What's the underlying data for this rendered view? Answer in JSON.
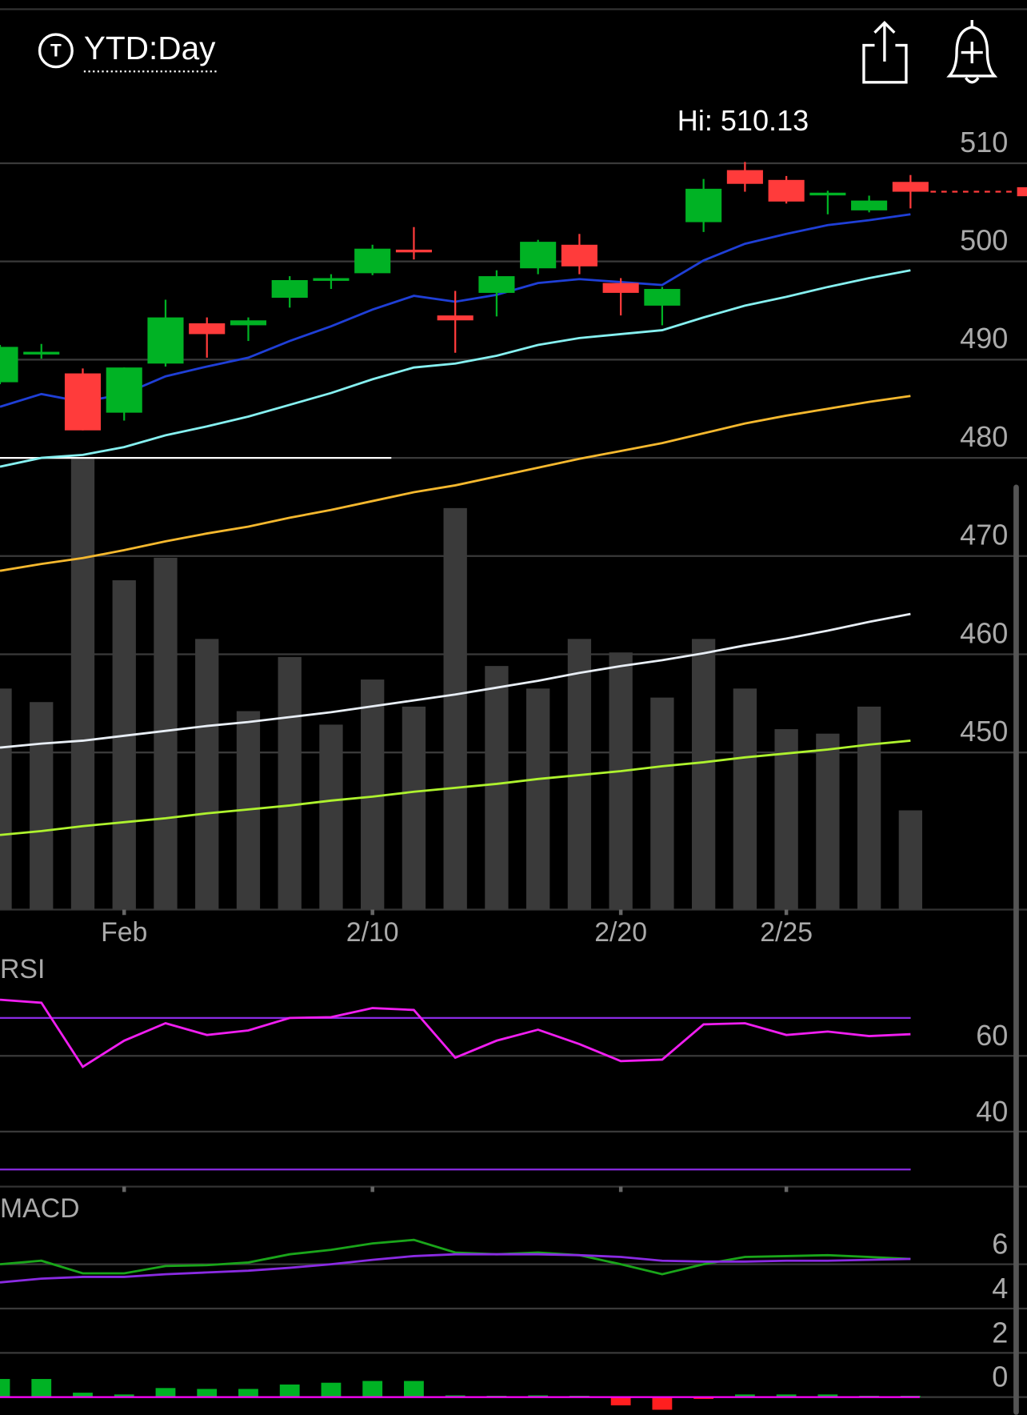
{
  "header": {
    "icon_text": "T",
    "title": "YTD:Day"
  },
  "chart_data": [
    {
      "type": "candlestick",
      "categories": [
        null,
        null,
        null,
        "Feb",
        null,
        null,
        null,
        null,
        null,
        "2/10",
        null,
        null,
        null,
        null,
        null,
        "2/20",
        null,
        null,
        null,
        "2/25",
        null,
        null,
        null
      ],
      "open": [
        487.7,
        490.6,
        488.6,
        484.6,
        489.6,
        493.7,
        493.5,
        496.3,
        498.1,
        498.8,
        501.2,
        494.5,
        496.8,
        499.3,
        501.7,
        497.8,
        495.5,
        504.0,
        509.3,
        508.3,
        506.8,
        505.2,
        508.1
      ],
      "high": [
        491.5,
        491.6,
        489.1,
        489.2,
        496.1,
        494.3,
        494.3,
        498.5,
        498.7,
        501.7,
        503.5,
        497.0,
        499.1,
        502.2,
        502.8,
        498.3,
        497.4,
        508.4,
        510.13,
        508.7,
        507.2,
        506.7,
        508.8
      ],
      "low": [
        487.5,
        490.1,
        482.8,
        483.8,
        489.3,
        490.2,
        491.9,
        495.3,
        497.2,
        498.6,
        500.2,
        490.7,
        494.4,
        498.7,
        498.7,
        494.5,
        493.5,
        503.0,
        507.1,
        505.9,
        504.8,
        505.0,
        505.4
      ],
      "close": [
        491.3,
        490.8,
        482.8,
        489.2,
        494.3,
        492.6,
        494.0,
        498.1,
        498.3,
        501.3,
        501.0,
        494.0,
        498.5,
        502.0,
        499.5,
        496.8,
        497.2,
        507.4,
        507.9,
        506.1,
        507.0,
        506.2,
        507.1
      ],
      "up_color": "#00b224",
      "down_color": "#ff3b3b",
      "ylim": [
        434,
        516.5
      ],
      "yticks": [
        450,
        460,
        470,
        480,
        490,
        500,
        510
      ],
      "grid": true,
      "annotations": [
        {
          "text": "Hi: 510.13",
          "value": 510.13
        }
      ],
      "overlays": [
        {
          "color": "#1f3fd6",
          "values": [
            485.2,
            486.5,
            485.7,
            486.5,
            488.3,
            489.3,
            490.2,
            491.9,
            493.4,
            495.1,
            496.5,
            495.9,
            496.6,
            497.8,
            498.2,
            497.9,
            497.6,
            500.1,
            501.8,
            502.8,
            503.7,
            504.2,
            504.8
          ]
        },
        {
          "color": "#86f0f0",
          "values": [
            479.1,
            480.0,
            480.3,
            481.1,
            482.3,
            483.2,
            484.2,
            485.4,
            486.6,
            488.0,
            489.2,
            489.6,
            490.4,
            491.5,
            492.2,
            492.6,
            493.0,
            494.3,
            495.5,
            496.4,
            497.4,
            498.3,
            499.1
          ]
        },
        {
          "color": "#f5b82e",
          "values": [
            468.5,
            469.2,
            469.8,
            470.6,
            471.5,
            472.3,
            473.0,
            473.9,
            474.7,
            475.6,
            476.5,
            477.2,
            478.1,
            479.0,
            479.9,
            480.7,
            481.5,
            482.5,
            483.5,
            484.3,
            485.0,
            485.7,
            486.3
          ]
        },
        {
          "color": "#e8eef5",
          "values": [
            450.5,
            450.9,
            451.2,
            451.7,
            452.2,
            452.7,
            453.1,
            453.6,
            454.1,
            454.7,
            455.3,
            455.9,
            456.6,
            457.3,
            458.1,
            458.8,
            459.4,
            460.1,
            460.9,
            461.6,
            462.4,
            463.3,
            464.1
          ]
        },
        {
          "color": "#aef22e",
          "values": [
            441.6,
            442.0,
            442.5,
            442.9,
            443.3,
            443.8,
            444.2,
            444.6,
            445.1,
            445.5,
            446.0,
            446.4,
            446.8,
            447.3,
            447.7,
            448.1,
            448.6,
            449.0,
            449.5,
            449.9,
            450.3,
            450.8,
            451.2
          ]
        }
      ],
      "reference_lines": [
        {
          "value": 480,
          "color": "#ffffff"
        }
      ],
      "volume": {
        "color": "#3a3a3a",
        "values": [
          49,
          46,
          100,
          73,
          78,
          60,
          44,
          56,
          41,
          51,
          45,
          89,
          54,
          49,
          60,
          57,
          47,
          60,
          49,
          40,
          39,
          45,
          22
        ]
      }
    },
    {
      "type": "line",
      "title": "RSI",
      "color": "#f01ef0",
      "values": [
        74.8,
        74.0,
        57.1,
        64.0,
        68.6,
        65.5,
        66.7,
        70.0,
        70.2,
        72.6,
        72.1,
        59.5,
        64.0,
        66.9,
        63.1,
        58.6,
        59.0,
        68.3,
        68.6,
        65.5,
        66.4,
        65.2,
        65.7
      ],
      "ylim": [
        25.5,
        86.2
      ],
      "yticks": [
        40,
        60
      ],
      "grid": true,
      "reference_lines": [
        {
          "value": 70,
          "color": "#8a2be2"
        },
        {
          "value": 30,
          "color": "#8a2be2"
        }
      ]
    },
    {
      "type": "macd",
      "title": "MACD",
      "series": [
        {
          "color": "#1aa51a",
          "values": [
            6.0,
            6.16,
            5.59,
            5.59,
            5.92,
            5.96,
            6.08,
            6.45,
            6.65,
            6.94,
            7.1,
            6.53,
            6.45,
            6.53,
            6.41,
            6.0,
            5.55,
            6.0,
            6.33,
            6.37,
            6.41,
            6.33,
            6.24
          ]
        },
        {
          "color": "#8a2be2",
          "values": [
            5.18,
            5.35,
            5.43,
            5.43,
            5.55,
            5.63,
            5.71,
            5.84,
            6.0,
            6.2,
            6.37,
            6.45,
            6.45,
            6.45,
            6.41,
            6.33,
            6.16,
            6.12,
            6.12,
            6.16,
            6.16,
            6.2,
            6.24
          ]
        }
      ],
      "histogram": {
        "up_color": "#00b224",
        "down_color": "#ff1f1f",
        "values": [
          0.82,
          0.82,
          0.2,
          0.12,
          0.41,
          0.37,
          0.37,
          0.57,
          0.65,
          0.73,
          0.73,
          0.08,
          0,
          0.08,
          0,
          -0.37,
          -0.57,
          -0.08,
          0.12,
          0.12,
          0.12,
          0,
          0
        ]
      },
      "zero_color": "#ff00ff",
      "ylim": [
        -0.8,
        9.1
      ],
      "yticks": [
        0,
        2,
        4,
        6
      ],
      "grid": true
    }
  ]
}
